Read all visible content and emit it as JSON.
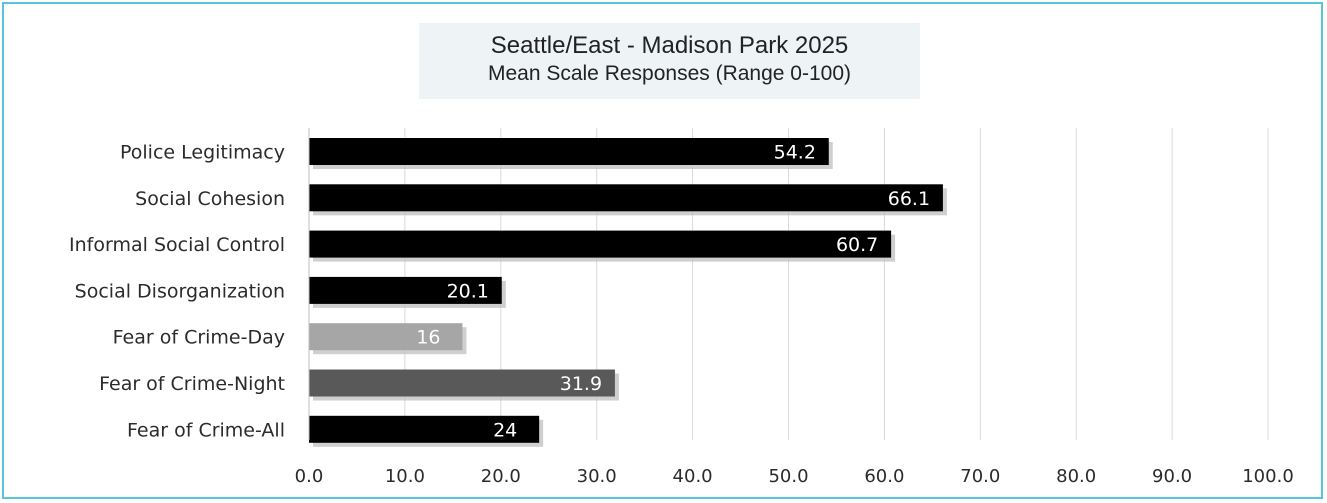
{
  "chart_data": {
    "type": "bar",
    "orientation": "horizontal",
    "title": "Seattle/East - Madison Park 2025",
    "subtitle": "Mean Scale Responses (Range 0-100)",
    "categories": [
      "Police Legitimacy",
      "Social Cohesion",
      "Informal Social Control",
      "Social Disorganization",
      "Fear of Crime-Day",
      "Fear of Crime-Night",
      "Fear of Crime-All"
    ],
    "values": [
      54.2,
      66.1,
      60.7,
      20.1,
      16,
      31.9,
      24
    ],
    "value_labels": [
      "54.2",
      "66.1",
      "60.7",
      "20.1",
      "16",
      "31.9",
      "24"
    ],
    "bar_colors": [
      "#000000",
      "#000000",
      "#000000",
      "#000000",
      "#a6a6a6",
      "#595959",
      "#000000"
    ],
    "xlim": [
      0,
      100
    ],
    "xticks": [
      0,
      10,
      20,
      30,
      40,
      50,
      60,
      70,
      80,
      90,
      100
    ],
    "xtick_labels": [
      "0.0",
      "10.0",
      "20.0",
      "30.0",
      "40.0",
      "50.0",
      "60.0",
      "70.0",
      "80.0",
      "90.0",
      "100.0"
    ],
    "grid": "vertical",
    "legend": "none",
    "frame_color": "#58c4dc"
  }
}
